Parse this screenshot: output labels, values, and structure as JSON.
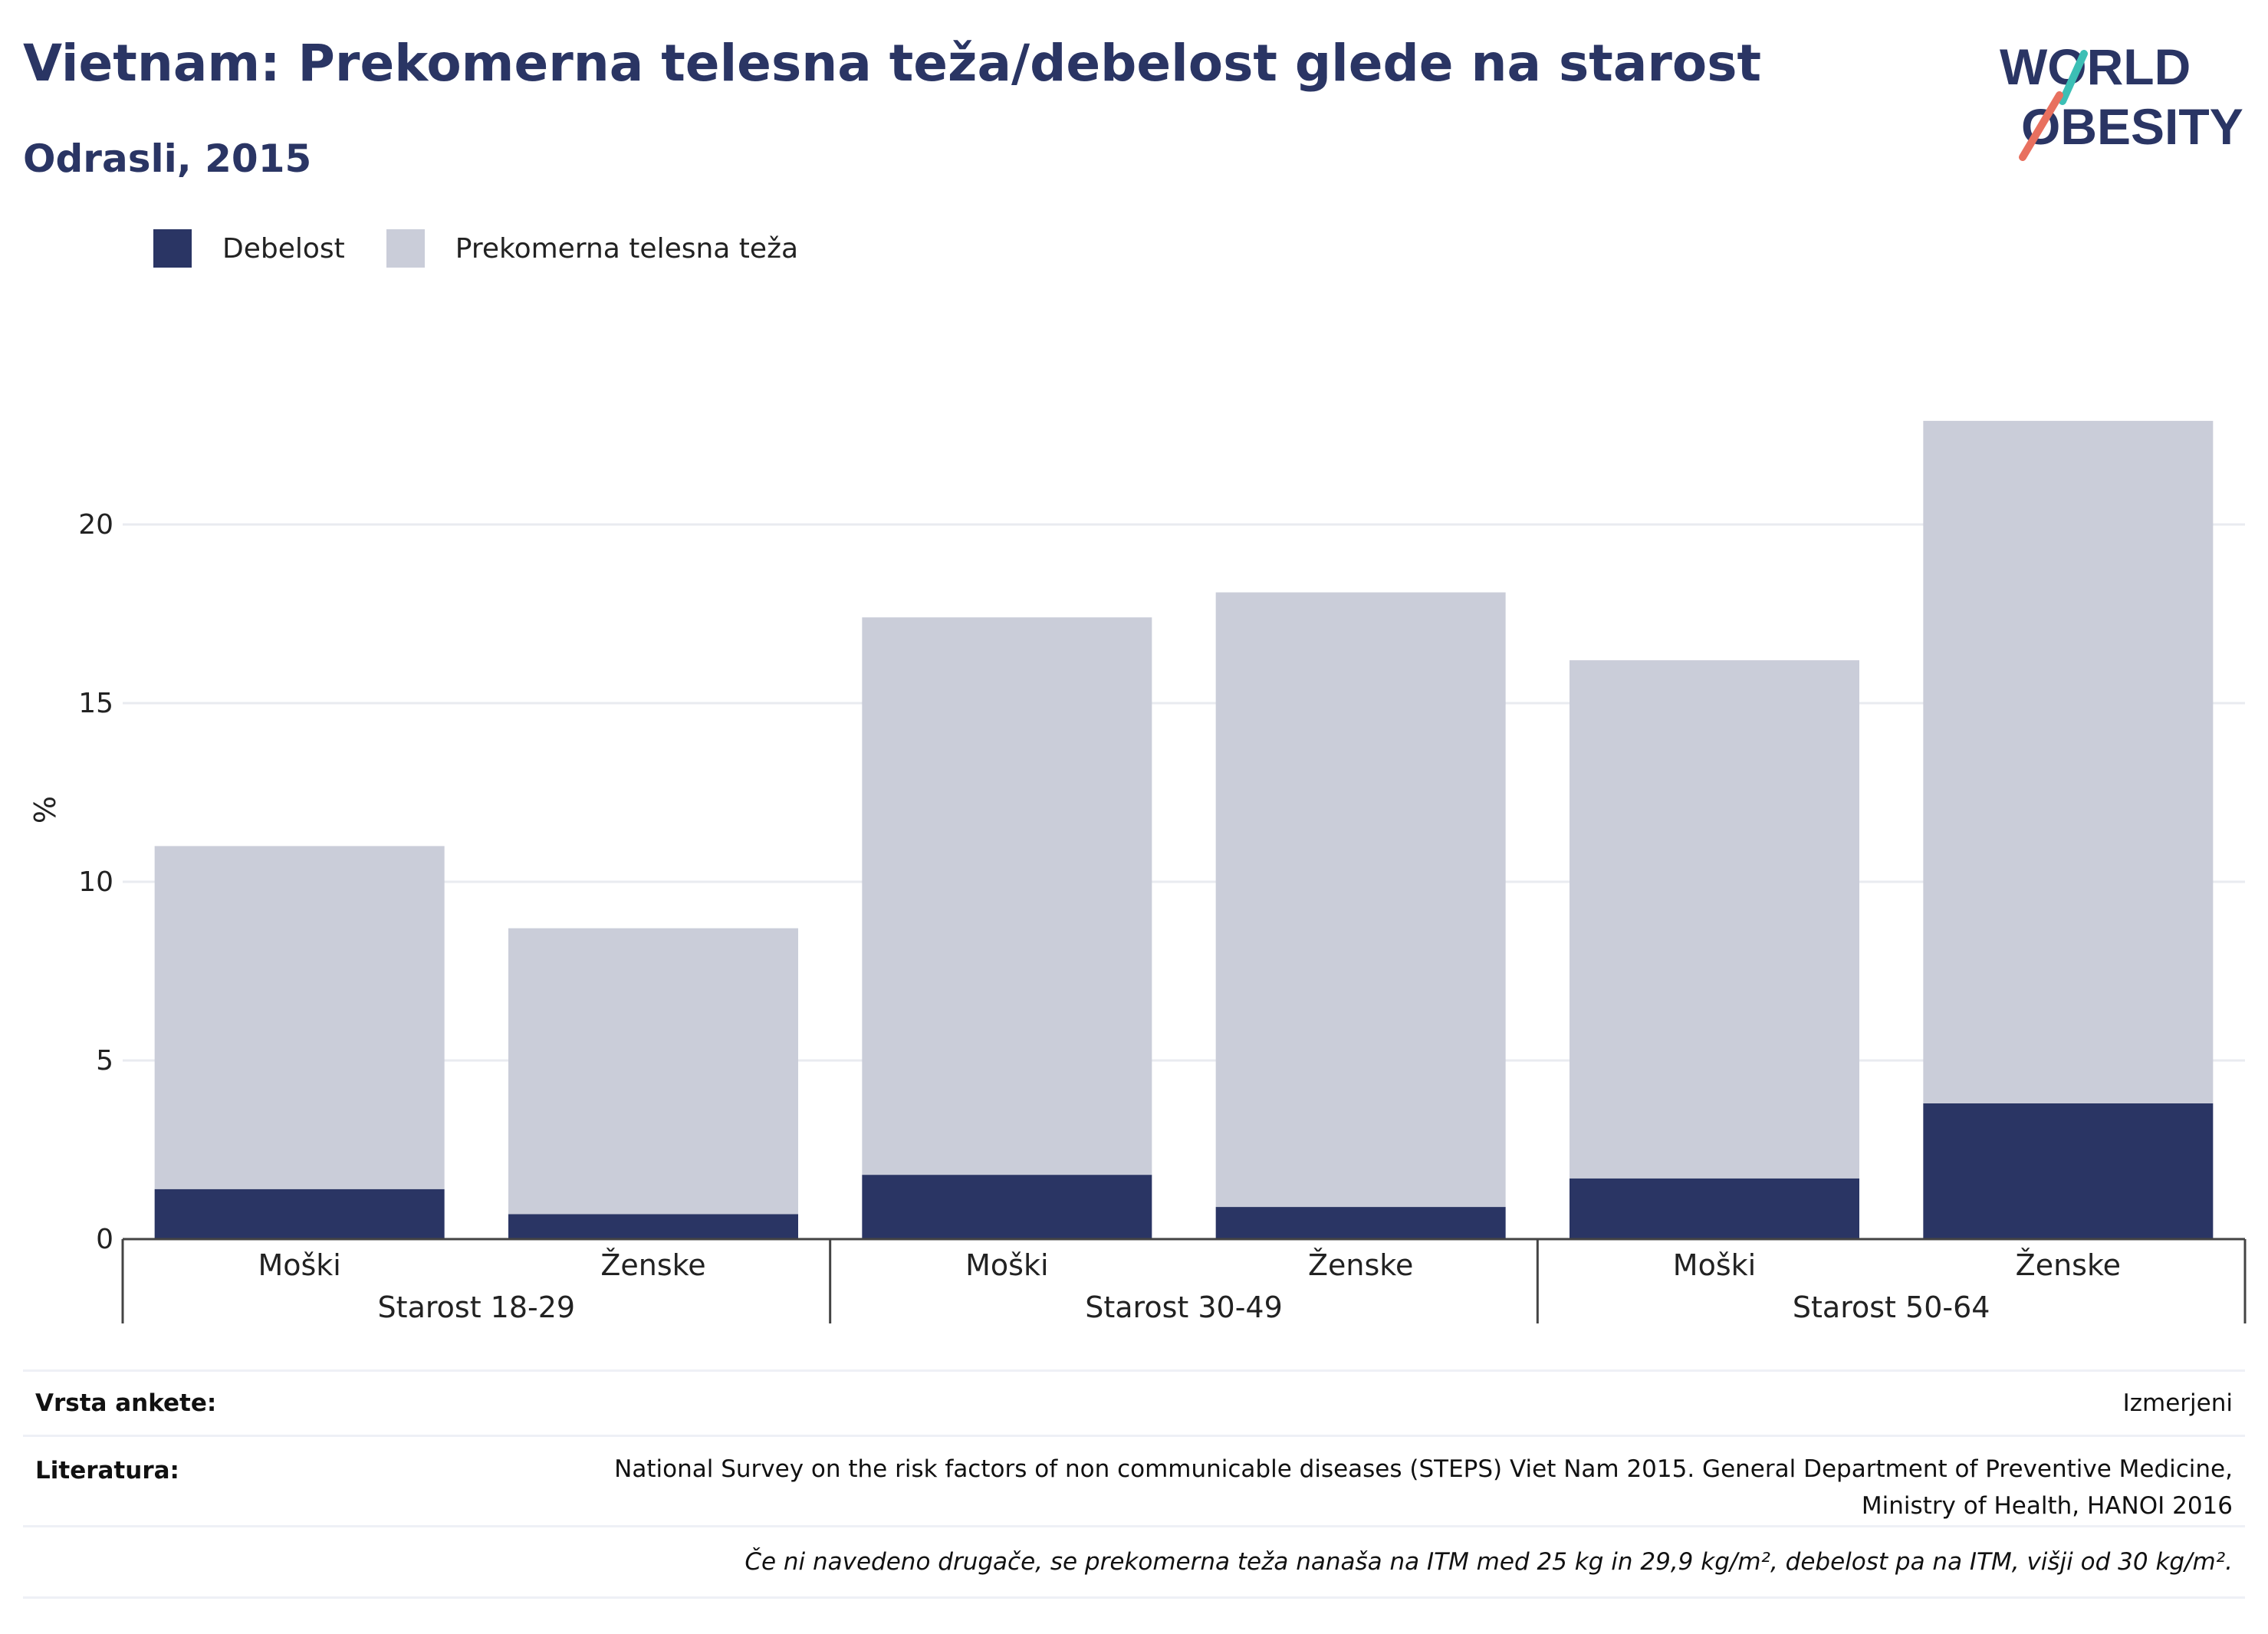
{
  "title": "Vietnam: Prekomerna telesna teža/debelost glede na starost",
  "subtitle": "Odrasli, 2015",
  "logo": {
    "line1": "WORLD",
    "line2": "OBESITY",
    "colors": [
      "#2a3564",
      "#e8705f",
      "#3cbfb5"
    ]
  },
  "colors": {
    "obesity": "#2a3564",
    "overweight": "#cacdd9",
    "grid": "#e9ebf0",
    "axis": "#444444"
  },
  "chart_data": {
    "type": "bar",
    "stacked": true,
    "ylabel": "%",
    "ylim": [
      0,
      24
    ],
    "yticks": [
      0,
      5,
      10,
      15,
      20
    ],
    "grid": true,
    "legend_position": "top-left",
    "groups": [
      {
        "label": "Starost 18-29",
        "categories": [
          "Moški",
          "Ženske"
        ]
      },
      {
        "label": "Starost 30-49",
        "categories": [
          "Moški",
          "Ženske"
        ]
      },
      {
        "label": "Starost 50-64",
        "categories": [
          "Moški",
          "Ženske"
        ]
      }
    ],
    "categories": [
      "Moški",
      "Ženske",
      "Moški",
      "Ženske",
      "Moški",
      "Ženske"
    ],
    "series": [
      {
        "name": "Debelost",
        "values": [
          1.4,
          0.7,
          1.8,
          0.9,
          1.7,
          3.8
        ]
      },
      {
        "name": "Prekomerna telesna teža",
        "values": [
          9.6,
          8.0,
          15.6,
          17.2,
          14.5,
          19.1
        ]
      }
    ]
  },
  "footer": {
    "survey_label": "Vrsta ankete:",
    "survey_value": "Izmerjeni",
    "lit_label": "Literatura:",
    "lit_line1": "National Survey on the risk factors of non communicable diseases (STEPS) Viet Nam 2015. General Department of Preventive Medicine,",
    "lit_line2": "Ministry of Health, HANOI 2016",
    "note": "Če ni navedeno drugače, se prekomerna teža nanaša na ITM med 25 kg in 29,9 kg/m², debelost pa na ITM, višji od 30 kg/m²."
  }
}
